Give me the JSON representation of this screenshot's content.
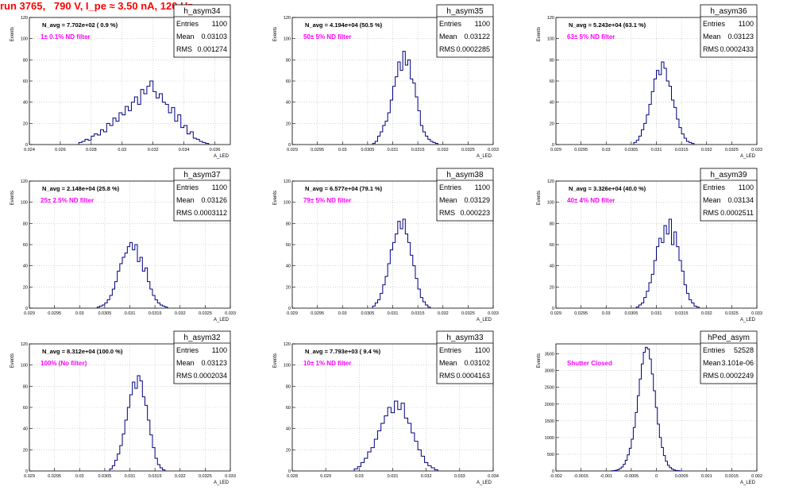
{
  "header": {
    "title": "run 3765,   790 V, I_pe ≈ 3.50 nA, 120 Hz"
  },
  "colors": {
    "title": "#ff0000",
    "histogram": "#000080",
    "filter_label": "#ff00ff",
    "axis": "#000000",
    "grid": "#bbbbbb"
  },
  "common": {
    "ylabel": "Events",
    "xlabel": "A_LED",
    "stats_labels": [
      "Entries",
      "Mean",
      "RMS"
    ]
  },
  "chart_data": [
    {
      "type": "histogram",
      "title": "h_asym34",
      "navg": "N_avg = 7.702e+02 ( 0.9 %)",
      "filter": "1± 0.1% ND filter",
      "stats": {
        "entries": "1100",
        "mean": "0.03103",
        "rms": "0.001274"
      },
      "xlim": [
        0.024,
        0.037
      ],
      "ylim": [
        0,
        120
      ],
      "xticks": [
        "0.024",
        "0.026",
        "0.028",
        "0.03",
        "0.032",
        "0.034",
        "0.036"
      ],
      "xtick_values": [
        0.024,
        0.026,
        0.028,
        0.03,
        0.032,
        0.034,
        0.036
      ],
      "yticks": [
        "0",
        "20",
        "40",
        "60",
        "80",
        "100",
        "120"
      ],
      "ytick_values": [
        0,
        20,
        40,
        60,
        80,
        100,
        120
      ],
      "bin_start": 0.0272,
      "bin_width": 0.0002,
      "counts": [
        2,
        3,
        5,
        4,
        8,
        10,
        9,
        14,
        12,
        20,
        18,
        25,
        22,
        30,
        28,
        36,
        32,
        40,
        45,
        38,
        52,
        48,
        55,
        60,
        50,
        44,
        48,
        40,
        38,
        30,
        35,
        22,
        28,
        16,
        18,
        10,
        12,
        6,
        5,
        3,
        2,
        1
      ]
    },
    {
      "type": "histogram",
      "title": "h_asym35",
      "navg": "N_avg = 4.194e+04 (50.5 %)",
      "filter": "50± 5% ND filter",
      "stats": {
        "entries": "1100",
        "mean": "0.03122",
        "rms": "0.0002285"
      },
      "xlim": [
        0.029,
        0.033
      ],
      "ylim": [
        0,
        120
      ],
      "xticks": [
        "0.029",
        "0.0295",
        "0.03",
        "0.0305",
        "0.031",
        "0.0315",
        "0.032",
        "0.0325",
        "0.033"
      ],
      "xtick_values": [
        0.029,
        0.0295,
        0.03,
        0.0305,
        0.031,
        0.0315,
        0.032,
        0.0325,
        0.033
      ],
      "yticks": [
        "0",
        "20",
        "40",
        "60",
        "80",
        "100",
        "120"
      ],
      "ytick_values": [
        0,
        20,
        40,
        60,
        80,
        100,
        120
      ],
      "bin_start": 0.0306,
      "bin_width": 5e-05,
      "counts": [
        1,
        3,
        8,
        12,
        18,
        22,
        30,
        42,
        55,
        64,
        78,
        70,
        88,
        75,
        80,
        62,
        58,
        45,
        32,
        18,
        12,
        8,
        5,
        3,
        2,
        1
      ]
    },
    {
      "type": "histogram",
      "title": "h_asym36",
      "navg": "N_avg = 5.243e+04 (63.1 %)",
      "filter": "63± 5% ND filter",
      "stats": {
        "entries": "1100",
        "mean": "0.03123",
        "rms": "0.0002433"
      },
      "xlim": [
        0.029,
        0.033
      ],
      "ylim": [
        0,
        120
      ],
      "xticks": [
        "0.029",
        "0.0295",
        "0.03",
        "0.0305",
        "0.031",
        "0.0315",
        "0.032",
        "0.0325",
        "0.033"
      ],
      "xtick_values": [
        0.029,
        0.0295,
        0.03,
        0.0305,
        0.031,
        0.0315,
        0.032,
        0.0325,
        0.033
      ],
      "yticks": [
        "0",
        "20",
        "40",
        "60",
        "80",
        "100",
        "120"
      ],
      "ytick_values": [
        0,
        20,
        40,
        60,
        80,
        100,
        120
      ],
      "bin_start": 0.03055,
      "bin_width": 5e-05,
      "counts": [
        2,
        4,
        8,
        14,
        20,
        28,
        38,
        50,
        62,
        70,
        66,
        78,
        72,
        60,
        55,
        42,
        35,
        24,
        16,
        10,
        6,
        3,
        2,
        1
      ]
    },
    {
      "type": "histogram",
      "title": "h_asym37",
      "navg": "N_avg = 2.148e+04 (25.8 %)",
      "filter": "25± 2.5% ND filter",
      "stats": {
        "entries": "1100",
        "mean": "0.03126",
        "rms": "0.0003112"
      },
      "xlim": [
        0.029,
        0.033
      ],
      "ylim": [
        0,
        120
      ],
      "xticks": [
        "0.029",
        "0.0295",
        "0.03",
        "0.0305",
        "0.031",
        "0.0315",
        "0.032",
        "0.0325",
        "0.033"
      ],
      "xtick_values": [
        0.029,
        0.0295,
        0.03,
        0.0305,
        0.031,
        0.0315,
        0.032,
        0.0325,
        0.033
      ],
      "yticks": [
        "0",
        "20",
        "40",
        "60",
        "80",
        "100",
        "120"
      ],
      "ytick_values": [
        0,
        20,
        40,
        60,
        80,
        100,
        120
      ],
      "bin_start": 0.03035,
      "bin_width": 5e-05,
      "counts": [
        1,
        2,
        3,
        5,
        8,
        12,
        18,
        25,
        35,
        42,
        48,
        52,
        58,
        62,
        55,
        60,
        44,
        48,
        35,
        38,
        25,
        18,
        12,
        8,
        5,
        3,
        2,
        1
      ]
    },
    {
      "type": "histogram",
      "title": "h_asym38",
      "navg": "N_avg = 6.577e+04 (79.1 %)",
      "filter": "79± 5% ND filter",
      "stats": {
        "entries": "1100",
        "mean": "0.03129",
        "rms": "0.000223"
      },
      "xlim": [
        0.029,
        0.033
      ],
      "ylim": [
        0,
        120
      ],
      "xticks": [
        "0.029",
        "0.0295",
        "0.03",
        "0.0305",
        "0.031",
        "0.0315",
        "0.032",
        "0.0325",
        "0.033"
      ],
      "xtick_values": [
        0.029,
        0.0295,
        0.03,
        0.0305,
        0.031,
        0.0315,
        0.032,
        0.0325,
        0.033
      ],
      "yticks": [
        "0",
        "20",
        "40",
        "60",
        "80",
        "100",
        "120"
      ],
      "ytick_values": [
        0,
        20,
        40,
        60,
        80,
        100,
        120
      ],
      "bin_start": 0.0306,
      "bin_width": 5e-05,
      "counts": [
        2,
        5,
        8,
        14,
        22,
        30,
        42,
        55,
        62,
        70,
        82,
        75,
        84,
        70,
        62,
        50,
        40,
        28,
        18,
        10,
        6,
        3,
        1
      ]
    },
    {
      "type": "histogram",
      "title": "h_asym39",
      "navg": "N_avg = 3.326e+04 (40.0 %)",
      "filter": "40± 4% ND filter",
      "stats": {
        "entries": "1100",
        "mean": "0.03134",
        "rms": "0.0002511"
      },
      "xlim": [
        0.029,
        0.033
      ],
      "ylim": [
        0,
        120
      ],
      "xticks": [
        "0.029",
        "0.0295",
        "0.03",
        "0.0305",
        "0.031",
        "0.0315",
        "0.032",
        "0.0325",
        "0.033"
      ],
      "xtick_values": [
        0.029,
        0.0295,
        0.03,
        0.0305,
        0.031,
        0.0315,
        0.032,
        0.0325,
        0.033
      ],
      "yticks": [
        "0",
        "20",
        "40",
        "60",
        "80",
        "100",
        "120"
      ],
      "ytick_values": [
        0,
        20,
        40,
        60,
        80,
        100,
        120
      ],
      "bin_start": 0.0306,
      "bin_width": 5e-05,
      "counts": [
        1,
        3,
        5,
        10,
        16,
        24,
        32,
        45,
        58,
        66,
        62,
        78,
        70,
        84,
        60,
        72,
        58,
        45,
        35,
        22,
        14,
        8,
        5,
        2,
        1
      ]
    },
    {
      "type": "histogram",
      "title": "h_asym32",
      "navg": "N_avg = 8.312e+04 (100.0 %)",
      "filter": "100% (No filter)",
      "stats": {
        "entries": "1100",
        "mean": "0.03123",
        "rms": "0.0002034"
      },
      "xlim": [
        0.029,
        0.033
      ],
      "ylim": [
        0,
        120
      ],
      "xticks": [
        "0.029",
        "0.0295",
        "0.03",
        "0.0305",
        "0.031",
        "0.0315",
        "0.032",
        "0.0325",
        "0.033"
      ],
      "xtick_values": [
        0.029,
        0.0295,
        0.03,
        0.0305,
        0.031,
        0.0315,
        0.032,
        0.0325,
        0.033
      ],
      "yticks": [
        "0",
        "20",
        "40",
        "60",
        "80",
        "100",
        "120"
      ],
      "ytick_values": [
        0,
        20,
        40,
        60,
        80,
        100,
        120
      ],
      "bin_start": 0.0306,
      "bin_width": 5e-05,
      "counts": [
        2,
        5,
        10,
        16,
        24,
        35,
        48,
        60,
        72,
        84,
        78,
        90,
        85,
        70,
        62,
        48,
        34,
        22,
        12,
        6,
        3,
        1
      ]
    },
    {
      "type": "histogram",
      "title": "h_asym33",
      "navg": "N_avg = 7.793e+03 ( 9.4 %)",
      "filter": "10± 1% ND filter",
      "stats": {
        "entries": "1100",
        "mean": "0.03102",
        "rms": "0.0004163"
      },
      "xlim": [
        0.028,
        0.034
      ],
      "ylim": [
        0,
        120
      ],
      "xticks": [
        "0.028",
        "0.029",
        "0.03",
        "0.031",
        "0.032",
        "0.033",
        "0.034"
      ],
      "xtick_values": [
        0.028,
        0.029,
        0.03,
        0.031,
        0.032,
        0.033,
        0.034
      ],
      "yticks": [
        "0",
        "20",
        "40",
        "60",
        "80",
        "100",
        "120"
      ],
      "ytick_values": [
        0,
        20,
        40,
        60,
        80,
        100,
        120
      ],
      "bin_start": 0.02985,
      "bin_width": 0.0001,
      "counts": [
        2,
        4,
        8,
        12,
        18,
        22,
        30,
        38,
        45,
        52,
        60,
        55,
        66,
        58,
        64,
        50,
        45,
        36,
        28,
        20,
        14,
        8,
        5,
        3,
        1
      ]
    },
    {
      "type": "histogram",
      "title": "hPed_asym",
      "navg": "",
      "filter": "Shutter Closed",
      "stats": {
        "entries": "52528",
        "mean": "3.101e-06",
        "rms": "0.0002249"
      },
      "xlim": [
        -0.002,
        0.002
      ],
      "ylim": [
        0,
        3800
      ],
      "xticks": [
        "-0.002",
        "-0.0015",
        "-0.001",
        "-0.0005",
        "0",
        "0.0005",
        "0.001",
        "0.0015",
        "0.002"
      ],
      "xtick_values": [
        -0.002,
        -0.0015,
        -0.001,
        -0.0005,
        0,
        0.0005,
        0.001,
        0.0015,
        0.002
      ],
      "yticks": [
        "0",
        "500",
        "1000",
        "1500",
        "2000",
        "2500",
        "3000",
        "3500"
      ],
      "ytick_values": [
        0,
        500,
        1000,
        1500,
        2000,
        2500,
        3000,
        3500
      ],
      "bin_start": -0.0009,
      "bin_width": 4e-05,
      "counts": [
        5,
        10,
        20,
        40,
        70,
        120,
        200,
        320,
        480,
        680,
        950,
        1300,
        1750,
        2250,
        2750,
        3200,
        3550,
        3700,
        3650,
        3350,
        2900,
        2400,
        1900,
        1400,
        1000,
        700,
        460,
        290,
        170,
        100,
        55,
        30,
        15,
        8,
        4
      ]
    }
  ]
}
